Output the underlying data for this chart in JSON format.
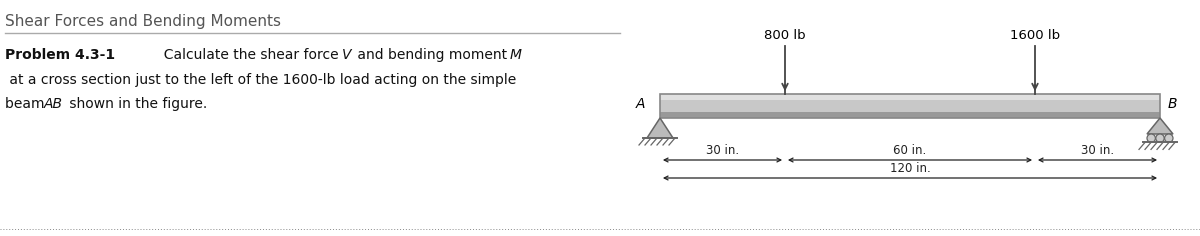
{
  "title": "Shear Forces and Bending Moments",
  "background_color": "#ffffff",
  "title_color": "#555555",
  "text_color": "#111111",
  "beam_fill_top": "#e8e8e8",
  "beam_fill_mid": "#b8b8b8",
  "beam_fill_bot": "#d0d0d0",
  "beam_edge_color": "#888888",
  "load1_label": "800 lb",
  "load2_label": "1600 lb",
  "dim1_label": "30 in.",
  "dim2_label": "60 in.",
  "dim3_label": "30 in.",
  "dim4_label": "120 in.",
  "label_A": "A",
  "label_B": "B",
  "dotted_line_color": "#888888",
  "support_color": "#888888",
  "support_face": "#bbbbbb",
  "arrow_color": "#444444",
  "dim_color": "#222222"
}
